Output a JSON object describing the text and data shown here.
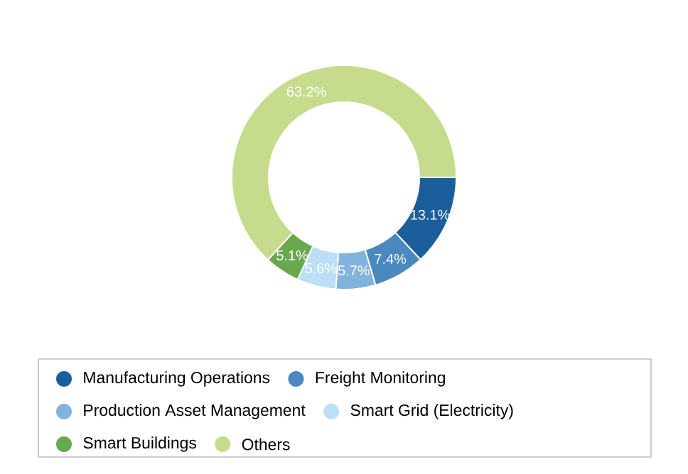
{
  "chart_data": {
    "type": "donut",
    "categories": [
      "Manufacturing Operations",
      "Freight Monitoring",
      "Production Asset Management",
      "Smart Grid (Electricity)",
      "Smart Buildings",
      "Others"
    ],
    "values": [
      13.1,
      7.4,
      5.7,
      5.6,
      5.1,
      63.2
    ],
    "colors": [
      "#1b5e9b",
      "#4a88bf",
      "#82b3dc",
      "#bcdff6",
      "#6aa84f",
      "#c6dc8c"
    ],
    "value_labels": [
      "13.1%",
      "7.4%",
      "5.7%",
      "5.6%",
      "5.1%",
      "63.2%"
    ],
    "legend": "bottom"
  }
}
